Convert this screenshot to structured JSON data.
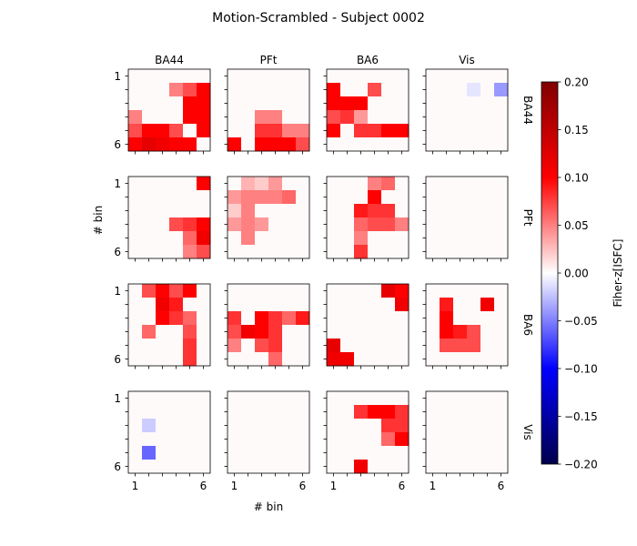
{
  "chart_data": {
    "type": "heatmap",
    "title": "Motion-Scrambled - Subject 0002",
    "xlabel": "# bin",
    "ylabel": "# bin",
    "regions": [
      "BA44",
      "PFt",
      "BA6",
      "Vis"
    ],
    "tick_labels": [
      "1",
      "6"
    ],
    "colorbar": {
      "label": "Fiher-z[ISFC]",
      "vmin": -0.2,
      "vmax": 0.2,
      "ticks": [
        "0.20",
        "0.15",
        "0.10",
        "0.05",
        "0.00",
        "−0.05",
        "−0.10",
        "−0.15",
        "−0.20"
      ],
      "colormap": "seismic"
    },
    "bins": 6,
    "matrices": [
      [
        [
          [
            0,
            0,
            0,
            0,
            0,
            0
          ],
          [
            0,
            0,
            0,
            0.05,
            0.07,
            0.1
          ],
          [
            0,
            0,
            0,
            0,
            0.1,
            0.1
          ],
          [
            0.05,
            0,
            0,
            0,
            0.1,
            0.1
          ],
          [
            0.07,
            0.1,
            0.1,
            0.07,
            0,
            0.1
          ],
          [
            0.1,
            0.12,
            0.11,
            0.1,
            0.1,
            0
          ]
        ],
        [
          [
            0,
            0,
            0,
            0,
            0,
            0
          ],
          [
            0,
            0,
            0,
            0,
            0,
            0
          ],
          [
            0,
            0,
            0,
            0,
            0,
            0
          ],
          [
            0,
            0,
            0.05,
            0.05,
            0,
            0
          ],
          [
            0,
            0,
            0.08,
            0.08,
            0.05,
            0.05
          ],
          [
            0.1,
            0,
            0.1,
            0.1,
            0.1,
            0.07
          ]
        ],
        [
          [
            0,
            0,
            0,
            0,
            0,
            0
          ],
          [
            0.1,
            0,
            0,
            0.07,
            0,
            0
          ],
          [
            0.1,
            0.1,
            0.1,
            0,
            0,
            0
          ],
          [
            0.07,
            0.08,
            0.04,
            0,
            0,
            0
          ],
          [
            0.1,
            0,
            0.08,
            0.08,
            0.1,
            0.1
          ],
          [
            0,
            0,
            0,
            0,
            0,
            0
          ]
        ],
        [
          [
            0,
            0,
            0,
            0,
            0,
            0
          ],
          [
            0,
            0,
            0,
            -0.01,
            0,
            -0.04
          ],
          [
            0,
            0,
            0,
            0,
            0,
            0
          ],
          [
            0,
            0,
            0,
            0,
            0,
            0
          ],
          [
            0,
            0,
            0,
            0,
            0,
            0
          ],
          [
            0,
            0,
            0,
            0,
            0,
            0
          ]
        ]
      ],
      [
        [
          [
            0,
            0,
            0,
            0,
            0,
            0.1
          ],
          [
            0,
            0,
            0,
            0,
            0,
            0
          ],
          [
            0,
            0,
            0,
            0,
            0,
            0
          ],
          [
            0,
            0,
            0,
            0.07,
            0.08,
            0.1
          ],
          [
            0,
            0,
            0,
            0,
            0.06,
            0.11
          ],
          [
            0,
            0,
            0,
            0,
            0.05,
            0.07
          ]
        ],
        [
          [
            0,
            0.03,
            0.02,
            0.04,
            0,
            0
          ],
          [
            0.04,
            0.05,
            0.05,
            0.05,
            0.06,
            0
          ],
          [
            0.02,
            0.05,
            0,
            0,
            0,
            0
          ],
          [
            0.04,
            0.05,
            0.04,
            0,
            0,
            0
          ],
          [
            0,
            0.05,
            0,
            0,
            0,
            0
          ],
          [
            0,
            0,
            0,
            0,
            0,
            0
          ]
        ],
        [
          [
            0,
            0,
            0,
            0.05,
            0.06,
            0
          ],
          [
            0,
            0,
            0,
            0.1,
            0,
            0
          ],
          [
            0,
            0,
            0.09,
            0.08,
            0.08,
            0
          ],
          [
            0,
            0,
            0.06,
            0.07,
            0.07,
            0.05
          ],
          [
            0,
            0,
            0.05,
            0,
            0,
            0
          ],
          [
            0,
            0,
            0.08,
            0,
            0,
            0
          ]
        ],
        [
          [
            0,
            0,
            0,
            0,
            0,
            0
          ],
          [
            0,
            0,
            0,
            0,
            0,
            0
          ],
          [
            0,
            0,
            0,
            0,
            0,
            0
          ],
          [
            0,
            0,
            0,
            0,
            0,
            0
          ],
          [
            0,
            0,
            0,
            0,
            0,
            0
          ],
          [
            0,
            0,
            0,
            0,
            0,
            0
          ]
        ]
      ],
      [
        [
          [
            0,
            0.07,
            0.1,
            0.07,
            0.1,
            0
          ],
          [
            0,
            0,
            0.11,
            0.09,
            0,
            0
          ],
          [
            0,
            0,
            0.1,
            0.08,
            0.06,
            0
          ],
          [
            0,
            0.06,
            0,
            0,
            0.07,
            0
          ],
          [
            0,
            0,
            0,
            0,
            0.08,
            0
          ],
          [
            0,
            0,
            0,
            0,
            0.08,
            0
          ]
        ],
        [
          [
            0,
            0,
            0,
            0,
            0,
            0
          ],
          [
            0,
            0,
            0,
            0,
            0,
            0
          ],
          [
            0.08,
            0,
            0.1,
            0.08,
            0.06,
            0.09
          ],
          [
            0.07,
            0.11,
            0.1,
            0.08,
            0,
            0
          ],
          [
            0.05,
            0,
            0.07,
            0.08,
            0,
            0
          ],
          [
            0,
            0,
            0,
            0.06,
            0,
            0
          ]
        ],
        [
          [
            0,
            0,
            0,
            0,
            0.12,
            0.1
          ],
          [
            0,
            0,
            0,
            0,
            0,
            0.11
          ],
          [
            0,
            0,
            0,
            0,
            0,
            0
          ],
          [
            0,
            0,
            0,
            0,
            0,
            0
          ],
          [
            0.12,
            0,
            0,
            0,
            0,
            0
          ],
          [
            0.11,
            0.11,
            0,
            0,
            0,
            0
          ]
        ],
        [
          [
            0,
            0,
            0,
            0,
            0,
            0
          ],
          [
            0,
            0.09,
            0,
            0,
            0.11,
            0
          ],
          [
            0,
            0.1,
            0,
            0,
            0,
            0
          ],
          [
            0,
            0.1,
            0.09,
            0.07,
            0,
            0
          ],
          [
            0,
            0.07,
            0.07,
            0.07,
            0,
            0
          ],
          [
            0,
            0,
            0,
            0,
            0,
            0
          ]
        ]
      ],
      [
        [
          [
            0,
            0,
            0,
            0,
            0,
            0
          ],
          [
            0,
            0,
            0,
            0,
            0,
            0
          ],
          [
            0,
            -0.02,
            0,
            0,
            0,
            0
          ],
          [
            0,
            0,
            0,
            0,
            0,
            0
          ],
          [
            0,
            -0.06,
            0,
            0,
            0,
            0
          ],
          [
            0,
            0,
            0,
            0,
            0,
            0
          ]
        ],
        [
          [
            0,
            0,
            0,
            0,
            0,
            0
          ],
          [
            0,
            0,
            0,
            0,
            0,
            0
          ],
          [
            0,
            0,
            0,
            0,
            0,
            0
          ],
          [
            0,
            0,
            0,
            0,
            0,
            0
          ],
          [
            0,
            0,
            0,
            0,
            0,
            0
          ],
          [
            0,
            0,
            0,
            0,
            0,
            0
          ]
        ],
        [
          [
            0,
            0,
            0,
            0,
            0,
            0
          ],
          [
            0,
            0,
            0.08,
            0.1,
            0.1,
            0.08
          ],
          [
            0,
            0,
            0,
            0,
            0.08,
            0.08
          ],
          [
            0,
            0,
            0,
            0,
            0.06,
            0.1
          ],
          [
            0,
            0,
            0,
            0,
            0,
            0
          ],
          [
            0,
            0,
            0.11,
            0,
            0,
            0
          ]
        ],
        [
          [
            0,
            0,
            0,
            0,
            0,
            0
          ],
          [
            0,
            0,
            0,
            0,
            0,
            0
          ],
          [
            0,
            0,
            0,
            0,
            0,
            0
          ],
          [
            0,
            0,
            0,
            0,
            0,
            0
          ],
          [
            0,
            0,
            0,
            0,
            0,
            0
          ],
          [
            0,
            0,
            0,
            0,
            0,
            0
          ]
        ]
      ]
    ]
  }
}
